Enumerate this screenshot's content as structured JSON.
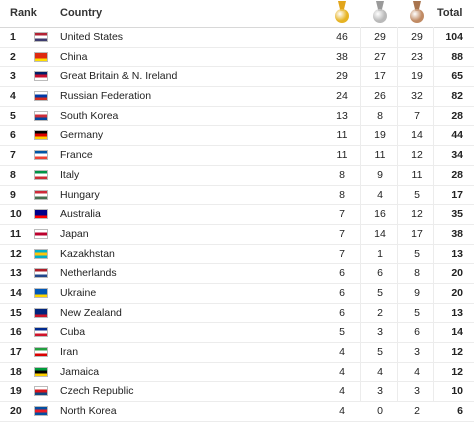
{
  "header": {
    "rank": "Rank",
    "country": "Country",
    "total": "Total",
    "medals": [
      {
        "name": "gold-medal-icon",
        "ribbon": "#e2a51a",
        "color": "#e6b323"
      },
      {
        "name": "silver-medal-icon",
        "ribbon": "#9a9a9a",
        "color": "#b9b9b9"
      },
      {
        "name": "bronze-medal-icon",
        "ribbon": "#a8744e",
        "color": "#c08a63"
      }
    ]
  },
  "rows": [
    {
      "rank": "1",
      "country": "United States",
      "gold": "46",
      "silver": "29",
      "bronze": "29",
      "total": "104",
      "flag": [
        "#b22234",
        "#ffffff",
        "#3c3b6e"
      ]
    },
    {
      "rank": "2",
      "country": "China",
      "gold": "38",
      "silver": "27",
      "bronze": "23",
      "total": "88",
      "flag": [
        "#de2910",
        "#de2910",
        "#ffde00"
      ]
    },
    {
      "rank": "3",
      "country": "Great Britain & N. Ireland",
      "gold": "29",
      "silver": "17",
      "bronze": "19",
      "total": "65",
      "flag": [
        "#012169",
        "#c8102e",
        "#ffffff"
      ]
    },
    {
      "rank": "4",
      "country": "Russian Federation",
      "gold": "24",
      "silver": "26",
      "bronze": "32",
      "total": "82",
      "flag": [
        "#ffffff",
        "#0039a6",
        "#d52b1e"
      ]
    },
    {
      "rank": "5",
      "country": "South Korea",
      "gold": "13",
      "silver": "8",
      "bronze": "7",
      "total": "28",
      "flag": [
        "#ffffff",
        "#cd2e3a",
        "#0047a0"
      ]
    },
    {
      "rank": "6",
      "country": "Germany",
      "gold": "11",
      "silver": "19",
      "bronze": "14",
      "total": "44",
      "flag": [
        "#000000",
        "#dd0000",
        "#ffce00"
      ]
    },
    {
      "rank": "7",
      "country": "France",
      "gold": "11",
      "silver": "11",
      "bronze": "12",
      "total": "34",
      "flag": [
        "#0055a4",
        "#ffffff",
        "#ef4135"
      ]
    },
    {
      "rank": "8",
      "country": "Italy",
      "gold": "8",
      "silver": "9",
      "bronze": "11",
      "total": "28",
      "flag": [
        "#009246",
        "#ffffff",
        "#ce2b37"
      ]
    },
    {
      "rank": "9",
      "country": "Hungary",
      "gold": "8",
      "silver": "4",
      "bronze": "5",
      "total": "17",
      "flag": [
        "#ce2939",
        "#ffffff",
        "#477050"
      ]
    },
    {
      "rank": "10",
      "country": "Australia",
      "gold": "7",
      "silver": "16",
      "bronze": "12",
      "total": "35",
      "flag": [
        "#00008b",
        "#00008b",
        "#ff0000"
      ]
    },
    {
      "rank": "11",
      "country": "Japan",
      "gold": "7",
      "silver": "14",
      "bronze": "17",
      "total": "38",
      "flag": [
        "#ffffff",
        "#bc002d",
        "#ffffff"
      ]
    },
    {
      "rank": "12",
      "country": "Kazakhstan",
      "gold": "7",
      "silver": "1",
      "bronze": "5",
      "total": "13",
      "flag": [
        "#00afca",
        "#fec50c",
        "#00afca"
      ]
    },
    {
      "rank": "13",
      "country": "Netherlands",
      "gold": "6",
      "silver": "6",
      "bronze": "8",
      "total": "20",
      "flag": [
        "#ae1c28",
        "#ffffff",
        "#21468b"
      ]
    },
    {
      "rank": "14",
      "country": "Ukraine",
      "gold": "6",
      "silver": "5",
      "bronze": "9",
      "total": "20",
      "flag": [
        "#0057b7",
        "#0057b7",
        "#ffd700"
      ]
    },
    {
      "rank": "15",
      "country": "New Zealand",
      "gold": "6",
      "silver": "2",
      "bronze": "5",
      "total": "13",
      "flag": [
        "#00247d",
        "#00247d",
        "#cc142b"
      ]
    },
    {
      "rank": "16",
      "country": "Cuba",
      "gold": "5",
      "silver": "3",
      "bronze": "6",
      "total": "14",
      "flag": [
        "#002a8f",
        "#ffffff",
        "#cf142b"
      ]
    },
    {
      "rank": "17",
      "country": "Iran",
      "gold": "4",
      "silver": "5",
      "bronze": "3",
      "total": "12",
      "flag": [
        "#239f40",
        "#ffffff",
        "#da0000"
      ]
    },
    {
      "rank": "18",
      "country": "Jamaica",
      "gold": "4",
      "silver": "4",
      "bronze": "4",
      "total": "12",
      "flag": [
        "#009b3a",
        "#000000",
        "#fed100"
      ]
    },
    {
      "rank": "19",
      "country": "Czech Republic",
      "gold": "4",
      "silver": "3",
      "bronze": "3",
      "total": "10",
      "flag": [
        "#ffffff",
        "#d7141a",
        "#11457e"
      ]
    },
    {
      "rank": "20",
      "country": "North Korea",
      "gold": "4",
      "silver": "0",
      "bronze": "2",
      "total": "6",
      "flag": [
        "#024fa2",
        "#ed1c27",
        "#024fa2"
      ]
    }
  ]
}
